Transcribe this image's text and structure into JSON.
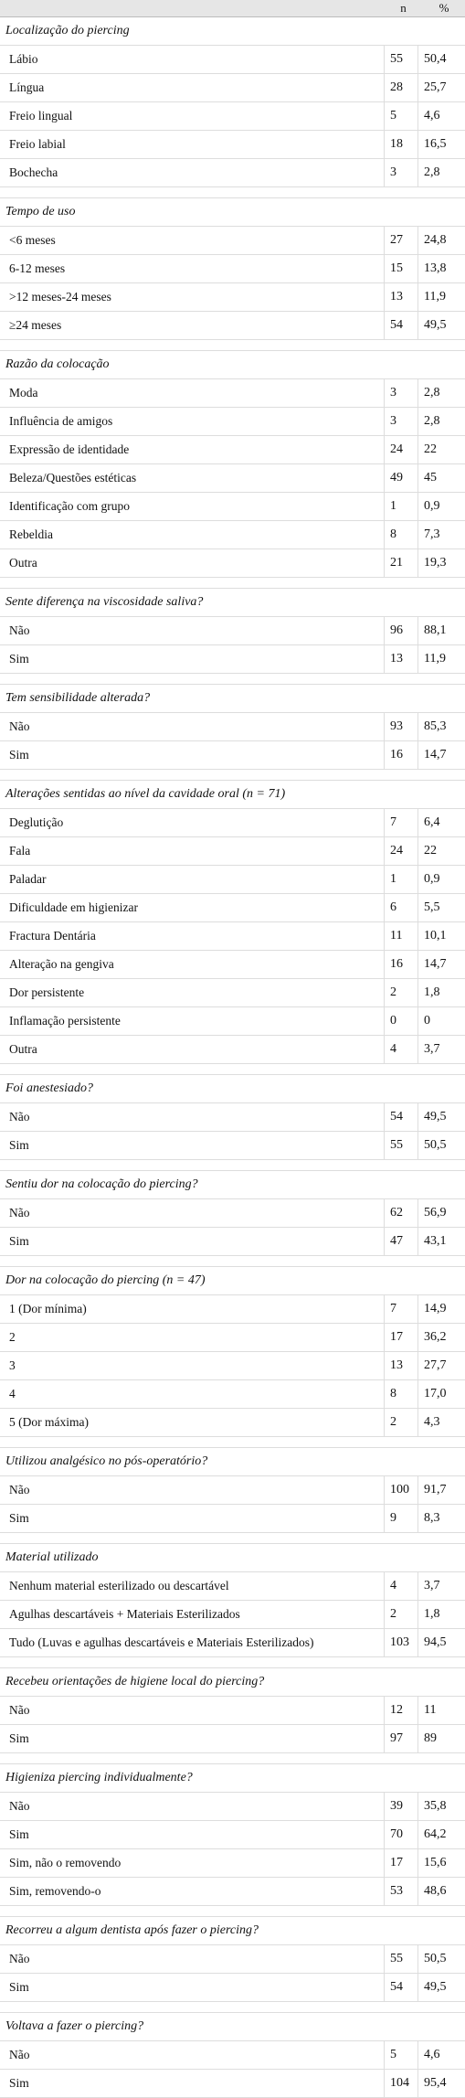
{
  "header": {
    "n": "n",
    "pct": "%"
  },
  "sections": [
    {
      "title": "Localização do piercing",
      "rows": [
        [
          "Lábio",
          55,
          "50,4"
        ],
        [
          "Língua",
          28,
          "25,7"
        ],
        [
          "Freio lingual",
          5,
          "4,6"
        ],
        [
          "Freio labial",
          18,
          "16,5"
        ],
        [
          "Bochecha",
          3,
          "2,8"
        ]
      ]
    },
    {
      "title": "Tempo de uso",
      "rows": [
        [
          "<6 meses",
          27,
          "24,8"
        ],
        [
          "6-12 meses",
          15,
          "13,8"
        ],
        [
          ">12 meses-24 meses",
          13,
          "11,9"
        ],
        [
          "≥24 meses",
          54,
          "49,5"
        ]
      ]
    },
    {
      "title": "Razão da colocação",
      "rows": [
        [
          "Moda",
          3,
          "2,8"
        ],
        [
          "Influência de amigos",
          3,
          "2,8"
        ],
        [
          "Expressão de identidade",
          24,
          "22"
        ],
        [
          "Beleza/Questões estéticas",
          49,
          "45"
        ],
        [
          "Identificação com grupo",
          1,
          "0,9"
        ],
        [
          "Rebeldia",
          8,
          "7,3"
        ],
        [
          "Outra",
          21,
          "19,3"
        ]
      ]
    },
    {
      "title": "Sente diferença na viscosidade saliva?",
      "rows": [
        [
          "Não",
          96,
          "88,1"
        ],
        [
          "Sim",
          13,
          "11,9"
        ]
      ]
    },
    {
      "title": "Tem sensibilidade alterada?",
      "rows": [
        [
          "Não",
          93,
          "85,3"
        ],
        [
          "Sim",
          16,
          "14,7"
        ]
      ]
    },
    {
      "title": "Alterações sentidas ao nível da cavidade oral (n = 71)",
      "rows": [
        [
          "Deglutição",
          7,
          "6,4"
        ],
        [
          "Fala",
          24,
          "22"
        ],
        [
          "Paladar",
          1,
          "0,9"
        ],
        [
          "Dificuldade em higienizar",
          6,
          "5,5"
        ],
        [
          "Fractura Dentária",
          11,
          "10,1"
        ],
        [
          "Alteração na gengiva",
          16,
          "14,7"
        ],
        [
          "Dor persistente",
          2,
          "1,8"
        ],
        [
          "Inflamação persistente",
          0,
          "0"
        ],
        [
          "Outra",
          4,
          "3,7"
        ]
      ]
    },
    {
      "title": "Foi anestesiado?",
      "rows": [
        [
          "Não",
          54,
          "49,5"
        ],
        [
          "Sim",
          55,
          "50,5"
        ]
      ]
    },
    {
      "title": "Sentiu dor na colocação do piercing?",
      "rows": [
        [
          "Não",
          62,
          "56,9"
        ],
        [
          "Sim",
          47,
          "43,1"
        ]
      ]
    },
    {
      "title": "Dor na colocação do piercing (n = 47)",
      "rows": [
        [
          "1 (Dor mínima)",
          7,
          "14,9"
        ],
        [
          "2",
          17,
          "36,2"
        ],
        [
          "3",
          13,
          "27,7"
        ],
        [
          "4",
          8,
          "17,0"
        ],
        [
          "5 (Dor máxima)",
          2,
          "4,3"
        ]
      ]
    },
    {
      "title": "Utilizou analgésico no pós-operatório?",
      "rows": [
        [
          "Não",
          100,
          "91,7"
        ],
        [
          "Sim",
          9,
          "8,3"
        ]
      ]
    },
    {
      "title": "Material utilizado",
      "rows": [
        [
          "Nenhum material esterilizado ou descartável",
          4,
          "3,7"
        ],
        [
          "Agulhas descartáveis + Materiais Esterilizados",
          2,
          "1,8"
        ],
        [
          "Tudo (Luvas e agulhas descartáveis e Materiais Esterilizados)",
          103,
          "94,5"
        ]
      ]
    },
    {
      "title": "Recebeu orientações de higiene local do piercing?",
      "rows": [
        [
          "Não",
          12,
          "11"
        ],
        [
          "Sim",
          97,
          "89"
        ]
      ]
    },
    {
      "title": "Higieniza piercing individualmente?",
      "rows": [
        [
          "Não",
          39,
          "35,8"
        ],
        [
          "Sim",
          70,
          "64,2"
        ],
        [
          "Sim, não o removendo",
          17,
          "15,6"
        ],
        [
          "Sim, removendo-o",
          53,
          "48,6"
        ]
      ]
    },
    {
      "title": "Recorreu a algum dentista após fazer o piercing?",
      "rows": [
        [
          "Não",
          55,
          "50,5"
        ],
        [
          "Sim",
          54,
          "49,5"
        ]
      ]
    },
    {
      "title": "Voltava a fazer o piercing?",
      "rows": [
        [
          "Não",
          5,
          "4,6"
        ],
        [
          "Sim",
          104,
          "95,4"
        ]
      ]
    }
  ]
}
